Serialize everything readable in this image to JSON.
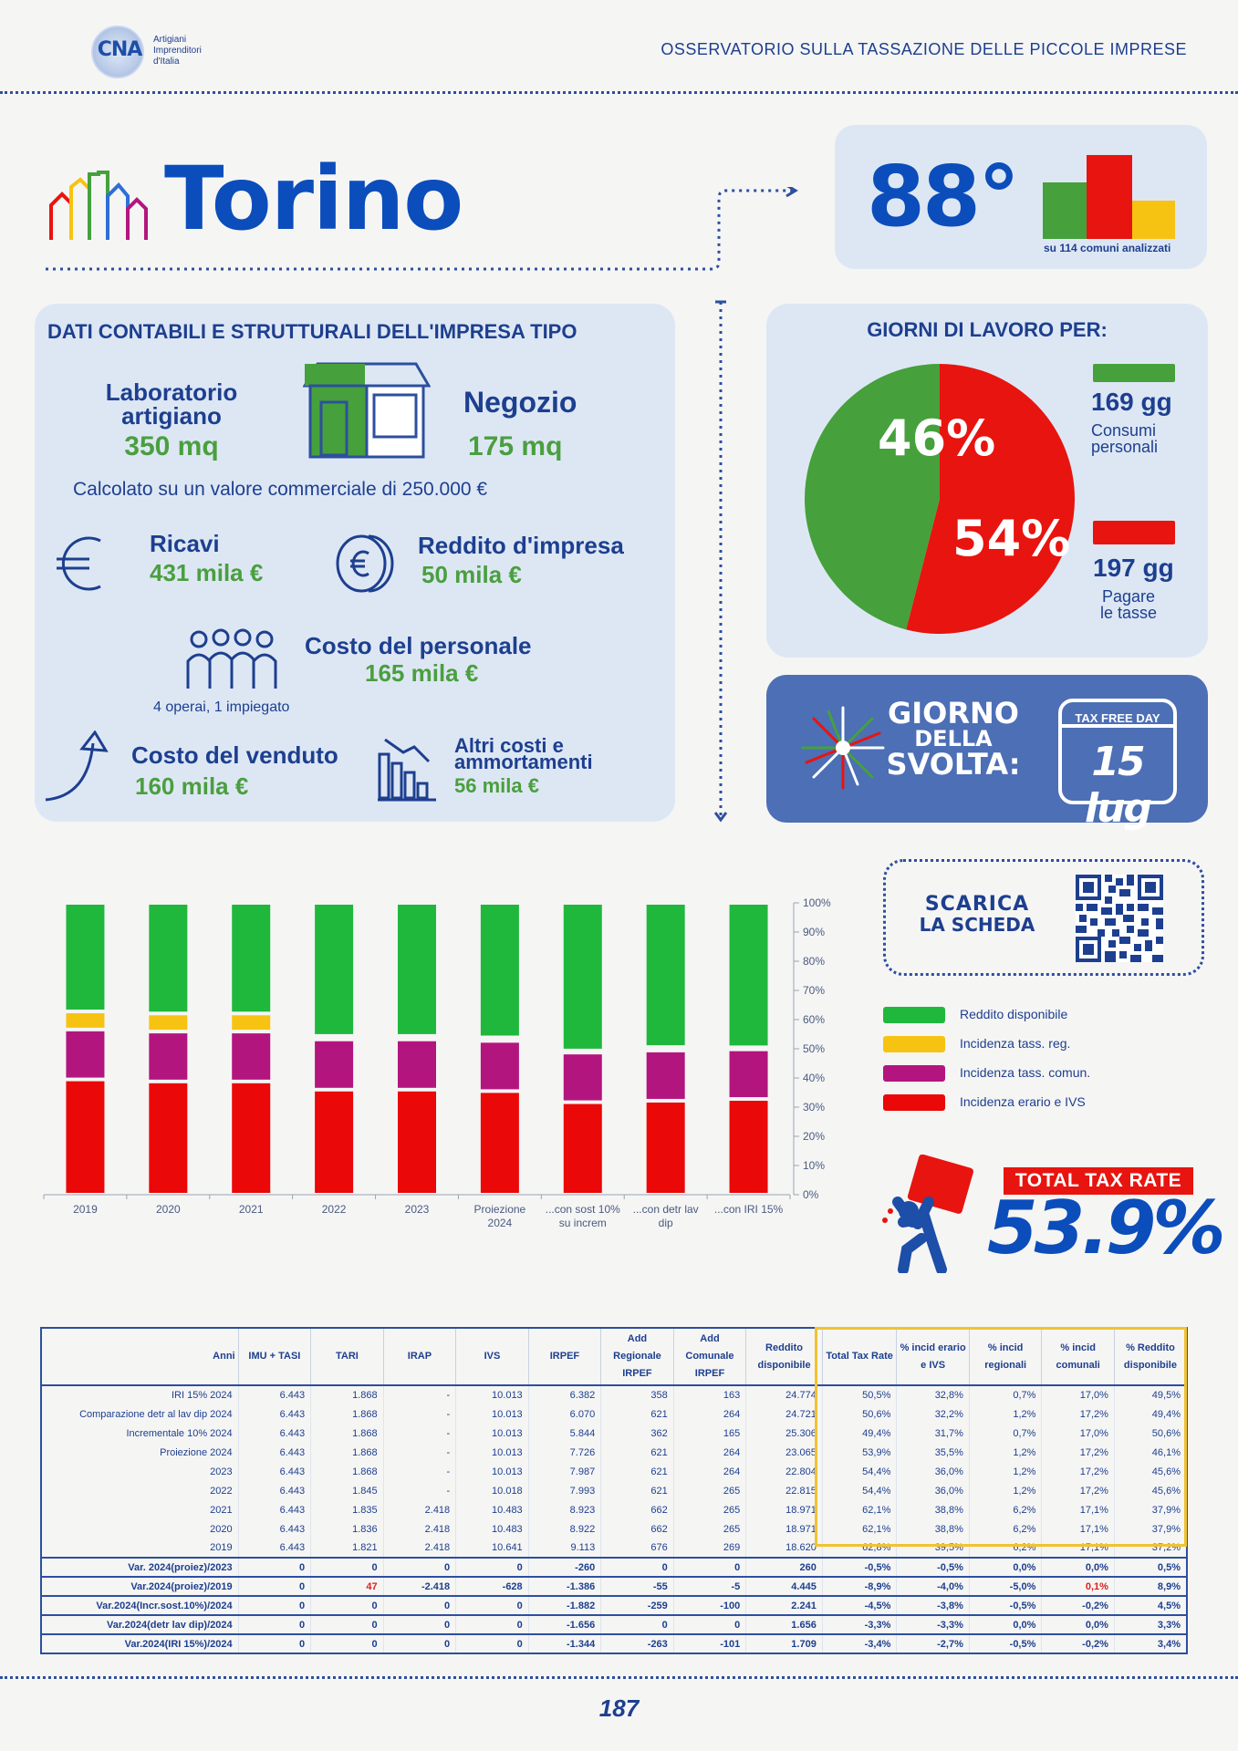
{
  "header": {
    "logo_abbr": "CNA",
    "logo_lines": [
      "Artigiani",
      "Imprenditori",
      "d'Italia"
    ],
    "title": "OSSERVATORIO SULLA TASSAZIONE DELLE PICCOLE IMPRESE"
  },
  "city": "Torino",
  "ranking": {
    "position": "88°",
    "subtitle": "su 114 comuni analizzati"
  },
  "company": {
    "title": "DATI CONTABILI E STRUTTURALI DELL'IMPRESA TIPO",
    "lab_label_1": "Laboratorio",
    "lab_label_2": "artigiano",
    "lab_value": "350 mq",
    "shop_label": "Negozio",
    "shop_value": "175 mq",
    "note": "Calcolato su un valore commerciale di 250.000 €",
    "ricavi_label": "Ricavi",
    "ricavi_value": "431 mila €",
    "reddito_label": "Reddito d'impresa",
    "reddito_value": "50 mila €",
    "personale_label": "Costo del personale",
    "personale_value": "165 mila €",
    "personale_note": "4 operai, 1 impiegato",
    "venduto_label": "Costo del venduto",
    "venduto_value": "160 mila €",
    "altri_label_1": "Altri costi e",
    "altri_label_2": "ammortamenti",
    "altri_value": "56 mila €"
  },
  "days": {
    "title": "GIORNI DI LAVORO PER:",
    "green_pct": "46%",
    "red_pct": "54%",
    "green_share": 0.46,
    "consumi_days": "169 gg",
    "consumi_label_1": "Consumi",
    "consumi_label_2": "personali",
    "tasse_days": "197 gg",
    "tasse_label_1": "Pagare",
    "tasse_label_2": "le tasse",
    "colors": {
      "green": "#46a03c",
      "red": "#e8140f"
    }
  },
  "svolta": {
    "line1": "GIORNO",
    "line2": "DELLA",
    "line3": "SVOLTA:",
    "calendar_header": "TAX FREE DAY",
    "date": "15 lug"
  },
  "scarica": {
    "line1": "SCARICA",
    "line2": "LA SCHEDA"
  },
  "legend": [
    {
      "label": "Reddito disponibile",
      "color": "#1fb83d"
    },
    {
      "label": "Incidenza tass. reg.",
      "color": "#f7c313"
    },
    {
      "label": "Incidenza tass. comun.",
      "color": "#b3157e"
    },
    {
      "label": "Incidenza erario e IVS",
      "color": "#ea0808"
    }
  ],
  "total_tax": {
    "label": "TOTAL TAX RATE",
    "value": "53.9%"
  },
  "chart_data": {
    "type": "bar",
    "stacked": true,
    "categories": [
      "2019",
      "2020",
      "2021",
      "2022",
      "2023",
      "Proiezione 2024",
      "...con sost 10% su increm",
      "...con detr lav dip",
      "...con IRI 15%"
    ],
    "ylim": [
      0,
      100
    ],
    "yticks": [
      "0%",
      "10%",
      "20%",
      "30%",
      "40%",
      "50%",
      "60%",
      "70%",
      "80%",
      "90%",
      "100%"
    ],
    "series": [
      {
        "name": "Incidenza erario e IVS",
        "color": "#ea0808",
        "values": [
          39.5,
          38.8,
          38.8,
          36.0,
          36.0,
          35.5,
          31.7,
          32.2,
          32.8
        ]
      },
      {
        "name": "Incidenza tass. comun.",
        "color": "#b3157e",
        "values": [
          17.1,
          17.1,
          17.1,
          17.2,
          17.2,
          17.2,
          17.0,
          17.2,
          17.0
        ]
      },
      {
        "name": "Incidenza tass. reg.",
        "color": "#f7c313",
        "values": [
          6.2,
          6.2,
          6.2,
          1.2,
          1.2,
          1.2,
          0.7,
          1.2,
          0.7
        ]
      },
      {
        "name": "Reddito disponibile",
        "color": "#1fb83d",
        "values": [
          37.2,
          37.9,
          37.9,
          45.6,
          45.6,
          46.1,
          50.6,
          49.4,
          49.5
        ]
      }
    ]
  },
  "table": {
    "headers": [
      "Anni",
      "IMU + TASI",
      "TARI",
      "IRAP",
      "IVS",
      "IRPEF",
      "Add Regionale IRPEF",
      "Add Comunale IRPEF",
      "Reddito disponibile",
      "Total Tax Rate",
      "% incid erario e IVS",
      "% incid regionali",
      "% incid comunali",
      "% Reddito disponibile"
    ],
    "rows": [
      [
        "IRI 15% 2024",
        "6.443",
        "1.868",
        "-",
        "10.013",
        "6.382",
        "358",
        "163",
        "24.774",
        "50,5%",
        "32,8%",
        "0,7%",
        "17,0%",
        "49,5%"
      ],
      [
        "Comparazione detr al lav dip 2024",
        "6.443",
        "1.868",
        "-",
        "10.013",
        "6.070",
        "621",
        "264",
        "24.721",
        "50,6%",
        "32,2%",
        "1,2%",
        "17,2%",
        "49,4%"
      ],
      [
        "Incrementale 10% 2024",
        "6.443",
        "1.868",
        "-",
        "10.013",
        "5.844",
        "362",
        "165",
        "25.306",
        "49,4%",
        "31,7%",
        "0,7%",
        "17,0%",
        "50,6%"
      ],
      [
        "Proiezione 2024",
        "6.443",
        "1.868",
        "-",
        "10.013",
        "7.726",
        "621",
        "264",
        "23.065",
        "53,9%",
        "35,5%",
        "1,2%",
        "17,2%",
        "46,1%"
      ],
      [
        "2023",
        "6.443",
        "1.868",
        "-",
        "10.013",
        "7.987",
        "621",
        "264",
        "22.804",
        "54,4%",
        "36,0%",
        "1,2%",
        "17,2%",
        "45,6%"
      ],
      [
        "2022",
        "6.443",
        "1.845",
        "-",
        "10.018",
        "7.993",
        "621",
        "265",
        "22.815",
        "54,4%",
        "36,0%",
        "1,2%",
        "17,2%",
        "45,6%"
      ],
      [
        "2021",
        "6.443",
        "1.835",
        "2.418",
        "10.483",
        "8.923",
        "662",
        "265",
        "18.971",
        "62,1%",
        "38,8%",
        "6,2%",
        "17,1%",
        "37,9%"
      ],
      [
        "2020",
        "6.443",
        "1.836",
        "2.418",
        "10.483",
        "8.922",
        "662",
        "265",
        "18.971",
        "62,1%",
        "38,8%",
        "6,2%",
        "17,1%",
        "37,9%"
      ],
      [
        "2019",
        "6.443",
        "1.821",
        "2.418",
        "10.641",
        "9.113",
        "676",
        "269",
        "18.620",
        "62,8%",
        "39,5%",
        "6,2%",
        "17,1%",
        "37,2%"
      ]
    ],
    "var_rows": [
      [
        "Var. 2024(proiez)/2023",
        "0",
        "0",
        "0",
        "0",
        "-260",
        "0",
        "0",
        "260",
        "-0,5%",
        "-0,5%",
        "0,0%",
        "0,0%",
        "0,5%"
      ],
      [
        "Var.2024(proiez)/2019",
        "0",
        "47",
        "-2.418",
        "-628",
        "-1.386",
        "-55",
        "-5",
        "4.445",
        "-8,9%",
        "-4,0%",
        "-5,0%",
        "0,1%",
        "8,9%"
      ],
      [
        "Var.2024(Incr.sost.10%)/2024",
        "0",
        "0",
        "0",
        "0",
        "-1.882",
        "-259",
        "-100",
        "2.241",
        "-4,5%",
        "-3,8%",
        "-0,5%",
        "-0,2%",
        "4,5%"
      ],
      [
        "Var.2024(detr lav dip)/2024",
        "0",
        "0",
        "0",
        "0",
        "-1.656",
        "0",
        "0",
        "1.656",
        "-3,3%",
        "-3,3%",
        "0,0%",
        "0,0%",
        "3,3%"
      ],
      [
        "Var.2024(IRI 15%)/2024",
        "0",
        "0",
        "0",
        "0",
        "-1.344",
        "-263",
        "-101",
        "1.709",
        "-3,4%",
        "-2,7%",
        "-0,5%",
        "-0,2%",
        "3,4%"
      ]
    ]
  },
  "page_number": "187"
}
